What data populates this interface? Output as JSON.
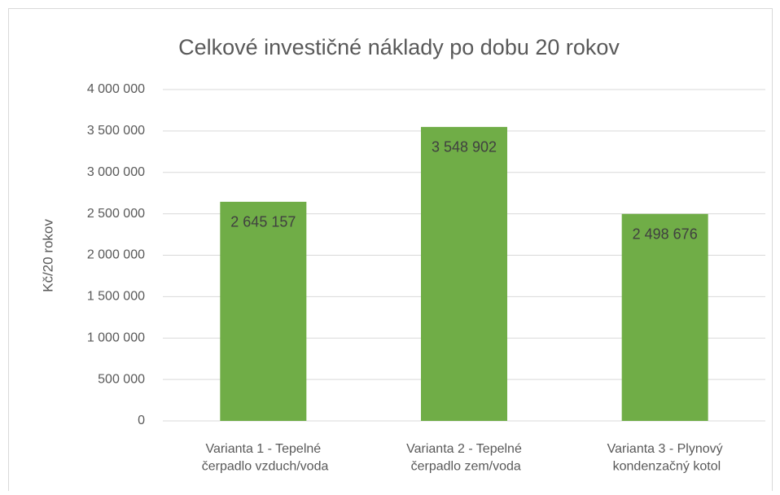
{
  "chart_data": {
    "type": "bar",
    "title": "Celkové investičné náklady po dobu 20 rokov",
    "y_label": "Kč/20 rokov",
    "categories": [
      "Varianta 1 - Tepelné čerpadlo vzduch/voda",
      "Varianta 2 - Tepelné čerpadlo zem/voda",
      "Varianta 3 - Plynový kondenzačný kotol"
    ],
    "values": [
      2645157,
      3548902,
      2498676
    ],
    "value_labels": [
      "2 645 157",
      "3 548 902",
      "2 498 676"
    ],
    "color": "#70ad47",
    "ylim": [
      0,
      4000000
    ],
    "yticks": [
      0,
      {
        "value": 500000,
        "label": "500 000"
      },
      {
        "value": 1000000,
        "label": "1 000 000"
      },
      {
        "value": 1500000,
        "label": "1 500 000"
      },
      {
        "value": 2000000,
        "label": "2 000 000"
      },
      {
        "value": 2500000,
        "label": "2 500 000"
      },
      {
        "value": 3000000,
        "label": "3 000 000"
      },
      {
        "value": 3500000,
        "label": "3 500 000"
      },
      {
        "value": 4000000,
        "label": "4 000 000"
      }
    ],
    "grid": true
  }
}
